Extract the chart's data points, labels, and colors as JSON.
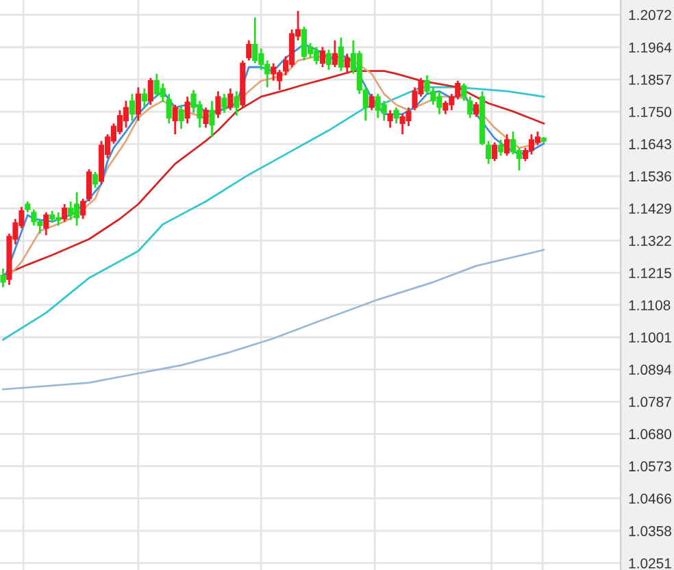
{
  "chart_data": {
    "type": "candlestick",
    "categories": [
      null,
      null,
      null,
      null,
      null,
      null,
      null,
      null,
      null,
      null,
      null,
      null,
      null,
      null,
      null,
      null,
      null,
      null,
      null,
      null,
      null,
      null,
      null,
      null,
      null,
      null,
      null,
      null,
      null,
      null,
      null,
      null,
      null,
      null,
      null,
      null,
      null,
      null,
      null,
      null,
      null,
      null,
      null,
      null,
      null,
      null,
      null,
      null,
      null,
      null,
      null,
      null,
      null,
      null,
      null,
      null,
      null,
      null,
      null,
      null,
      null,
      null,
      null,
      null,
      null,
      null,
      null,
      null,
      null,
      null,
      null,
      null,
      null,
      null,
      null,
      null,
      null,
      null,
      null,
      null,
      null,
      null,
      null,
      null,
      null,
      null,
      null,
      null,
      null,
      null,
      null,
      null,
      null,
      null,
      null,
      null,
      null,
      null,
      null,
      null,
      null
    ],
    "ohlc": [
      [
        1.1207,
        1.1229,
        1.1167,
        1.1184
      ],
      [
        1.1193,
        1.1345,
        1.1175,
        1.1336
      ],
      [
        1.1327,
        1.1394,
        1.1309,
        1.1381
      ],
      [
        1.1372,
        1.1434,
        1.1363,
        1.1421
      ],
      [
        1.1443,
        1.1452,
        1.1416,
        1.1425
      ],
      [
        1.1416,
        1.1425,
        1.1372,
        1.1385
      ],
      [
        1.1385,
        1.1394,
        1.1345,
        1.1372
      ],
      [
        1.1363,
        1.1416,
        1.134,
        1.1407
      ],
      [
        1.1407,
        1.1421,
        1.1381,
        1.1394
      ],
      [
        1.1398,
        1.1416,
        1.1372,
        1.139
      ],
      [
        1.1394,
        1.1443,
        1.1385,
        1.143
      ],
      [
        1.143,
        1.1452,
        1.139,
        1.1407
      ],
      [
        1.1443,
        1.1483,
        1.1372,
        1.1398
      ],
      [
        1.1407,
        1.1461,
        1.1394,
        1.1452
      ],
      [
        1.1461,
        1.1559,
        1.1452,
        1.155
      ],
      [
        1.1541,
        1.155,
        1.1497,
        1.151
      ],
      [
        1.1519,
        1.1653,
        1.151,
        1.1639
      ],
      [
        1.1608,
        1.1675,
        1.1595,
        1.1666
      ],
      [
        1.1653,
        1.1711,
        1.1644,
        1.1702
      ],
      [
        1.1684,
        1.1755,
        1.1675,
        1.1737
      ],
      [
        1.172,
        1.1786,
        1.1697,
        1.1764
      ],
      [
        1.1786,
        1.1809,
        1.172,
        1.1742
      ],
      [
        1.1742,
        1.1831,
        1.172,
        1.1809
      ],
      [
        1.1809,
        1.1827,
        1.1764,
        1.1786
      ],
      [
        1.1786,
        1.1862,
        1.1773,
        1.1853
      ],
      [
        1.1853,
        1.1876,
        1.18,
        1.1809
      ],
      [
        1.1827,
        1.1844,
        1.1782,
        1.18
      ],
      [
        1.1791,
        1.1809,
        1.1711,
        1.1729
      ],
      [
        1.172,
        1.1773,
        1.1675,
        1.1764
      ],
      [
        1.1755,
        1.1773,
        1.1693,
        1.172
      ],
      [
        1.1729,
        1.18,
        1.1711,
        1.1782
      ],
      [
        1.1809,
        1.1822,
        1.1746,
        1.1764
      ],
      [
        1.1773,
        1.1786,
        1.1697,
        1.1729
      ],
      [
        1.1711,
        1.1764,
        1.1697,
        1.1755
      ],
      [
        1.1755,
        1.1786,
        1.1666,
        1.1706
      ],
      [
        1.1742,
        1.1818,
        1.1729,
        1.18
      ],
      [
        1.1795,
        1.1809,
        1.1746,
        1.1764
      ],
      [
        1.1764,
        1.1827,
        1.1755,
        1.1809
      ],
      [
        1.18,
        1.1818,
        1.1737,
        1.1764
      ],
      [
        1.1773,
        1.192,
        1.1764,
        1.1911
      ],
      [
        1.1929,
        1.1987,
        1.192,
        1.1974
      ],
      [
        1.1974,
        1.2063,
        1.1911,
        1.192
      ],
      [
        1.1943,
        1.196,
        1.1889,
        1.1907
      ],
      [
        1.1907,
        1.192,
        1.1831,
        1.1876
      ],
      [
        1.1876,
        1.1911,
        1.1853,
        1.1898
      ],
      [
        1.1853,
        1.1889,
        1.1822,
        1.188
      ],
      [
        1.1885,
        1.1934,
        1.1871,
        1.192
      ],
      [
        1.1907,
        1.2023,
        1.1898,
        1.2009
      ],
      [
        1.2001,
        1.2085,
        1.1987,
        1.2023
      ],
      [
        1.2023,
        1.2032,
        1.192,
        1.1934
      ],
      [
        1.1965,
        1.1978,
        1.1929,
        1.1943
      ],
      [
        1.1952,
        1.1965,
        1.1907,
        1.192
      ],
      [
        1.1911,
        1.1965,
        1.1898,
        1.1952
      ],
      [
        1.1943,
        1.1956,
        1.1889,
        1.1907
      ],
      [
        1.1907,
        1.1987,
        1.1898,
        1.1943
      ],
      [
        1.1965,
        1.1996,
        1.1885,
        1.1898
      ],
      [
        1.1898,
        1.1943,
        1.1876,
        1.1929
      ],
      [
        1.1943,
        1.1987,
        1.1876,
        1.1889
      ],
      [
        1.1943,
        1.1952,
        1.1809,
        1.1822
      ],
      [
        1.1822,
        1.1831,
        1.172,
        1.1764
      ],
      [
        1.1764,
        1.1809,
        1.1755,
        1.18
      ],
      [
        1.18,
        1.1809,
        1.1729,
        1.1755
      ],
      [
        1.1773,
        1.1786,
        1.172,
        1.1746
      ],
      [
        1.172,
        1.1755,
        1.1697,
        1.1742
      ],
      [
        1.1755,
        1.1764,
        1.1711,
        1.1729
      ],
      [
        1.1711,
        1.1742,
        1.1675,
        1.1733
      ],
      [
        1.172,
        1.1764,
        1.1702,
        1.1751
      ],
      [
        1.1764,
        1.1831,
        1.1755,
        1.1818
      ],
      [
        1.1809,
        1.1862,
        1.18,
        1.1853
      ],
      [
        1.1853,
        1.1871,
        1.1809,
        1.1818
      ],
      [
        1.1818,
        1.1831,
        1.1773,
        1.1786
      ],
      [
        1.18,
        1.1818,
        1.1742,
        1.1764
      ],
      [
        1.1755,
        1.1786,
        1.1742,
        1.1778
      ],
      [
        1.1773,
        1.1809,
        1.1755,
        1.18
      ],
      [
        1.18,
        1.1853,
        1.1791,
        1.1844
      ],
      [
        1.1836,
        1.1844,
        1.1786,
        1.18
      ],
      [
        1.1786,
        1.18,
        1.1729,
        1.1742
      ],
      [
        1.1742,
        1.1782,
        1.1733,
        1.1773
      ],
      [
        1.18,
        1.1818,
        1.1639,
        1.1644
      ],
      [
        1.1639,
        1.1653,
        1.1577,
        1.1595
      ],
      [
        1.1595,
        1.1648,
        1.1586,
        1.1639
      ],
      [
        1.1639,
        1.1657,
        1.1604,
        1.1617
      ],
      [
        1.1613,
        1.1675,
        1.1604,
        1.1657
      ],
      [
        1.1657,
        1.1684,
        1.1608,
        1.1617
      ],
      [
        1.1621,
        1.163,
        1.1555,
        1.1595
      ],
      [
        1.1595,
        1.163,
        1.1586,
        1.1621
      ],
      [
        1.1621,
        1.1675,
        1.1608,
        1.1657
      ],
      [
        1.1648,
        1.1684,
        1.1639,
        1.1666
      ],
      [
        1.1662,
        1.1666,
        1.1648,
        1.1653
      ],
      null,
      null,
      null,
      null,
      null,
      null,
      null,
      null,
      null,
      null,
      null,
      null
    ],
    "colors": [
      "#22dd22",
      "#ee1c25",
      "#ee1c25",
      "#ee1c25",
      "#22dd22",
      "#22dd22",
      "#22dd22",
      "#ee1c25",
      "#22dd22",
      "#22dd22",
      "#ee1c25",
      "#22dd22",
      "#22dd22",
      "#ee1c25",
      "#ee1c25",
      "#22dd22",
      "#ee1c25",
      "#ee1c25",
      "#ee1c25",
      "#ee1c25",
      "#ee1c25",
      "#22dd22",
      "#ee1c25",
      "#22dd22",
      "#ee1c25",
      "#22dd22",
      "#22dd22",
      "#22dd22",
      "#ee1c25",
      "#22dd22",
      "#ee1c25",
      "#22dd22",
      "#22dd22",
      "#ee1c25",
      "#22dd22",
      "#ee1c25",
      "#22dd22",
      "#ee1c25",
      "#22dd22",
      "#ee1c25",
      "#ee1c25",
      "#22dd22",
      "#22dd22",
      "#22dd22",
      "#ee1c25",
      "#ee1c25",
      "#ee1c25",
      "#ee1c25",
      "#ee1c25",
      "#22dd22",
      "#22dd22",
      "#22dd22",
      "#ee1c25",
      "#22dd22",
      "#ee1c25",
      "#22dd22",
      "#ee1c25",
      "#22dd22",
      "#22dd22",
      "#22dd22",
      "#ee1c25",
      "#22dd22",
      "#22dd22",
      "#ee1c25",
      "#22dd22",
      "#ee1c25",
      "#ee1c25",
      "#ee1c25",
      "#ee1c25",
      "#22dd22",
      "#22dd22",
      "#22dd22",
      "#ee1c25",
      "#ee1c25",
      "#ee1c25",
      "#22dd22",
      "#22dd22",
      "#ee1c25",
      "#22dd22",
      "#22dd22",
      "#ee1c25",
      "#22dd22",
      "#ee1c25",
      "#22dd22",
      "#22dd22",
      "#ee1c25",
      "#ee1c25",
      "#ee1c25",
      "#22dd22",
      null,
      null,
      null,
      null,
      null,
      null,
      null,
      null,
      null,
      null,
      null,
      null
    ],
    "series": [
      {
        "type": "line",
        "color": "#9ab8d4",
        "values": [
          1.0828,
          null,
          null,
          null,
          null,
          null,
          null,
          null,
          null,
          null,
          null,
          null,
          null,
          null,
          1.085,
          null,
          null,
          null,
          null,
          null,
          null,
          null,
          1.0881,
          null,
          null,
          null,
          null,
          null,
          null,
          1.0908,
          null,
          null,
          null,
          null,
          null,
          null,
          null,
          1.0952,
          null,
          null,
          null,
          null,
          null,
          null,
          1.0997,
          null,
          null,
          null,
          null,
          null,
          null,
          1.1051,
          null,
          null,
          null,
          null,
          null,
          null,
          null,
          null,
          null,
          1.1126,
          null,
          null,
          null,
          null,
          null,
          null,
          null,
          null,
          1.1184,
          null,
          null,
          null,
          null,
          null,
          null,
          1.1238,
          null,
          null,
          null,
          null,
          null,
          null,
          null,
          null,
          null,
          null,
          1.1291,
          null,
          null,
          null,
          null,
          null,
          null,
          null,
          null,
          null,
          null,
          null,
          null
        ]
      },
      {
        "type": "line",
        "color": "#33c6cc",
        "values": [
          1.0993,
          null,
          null,
          null,
          null,
          null,
          null,
          1.1082,
          null,
          null,
          null,
          null,
          null,
          null,
          1.1198,
          null,
          null,
          null,
          null,
          null,
          null,
          null,
          1.1287,
          null,
          null,
          null,
          1.1376,
          null,
          null,
          null,
          null,
          null,
          null,
          1.1452,
          null,
          null,
          null,
          null,
          null,
          null,
          1.1541,
          null,
          null,
          null,
          1.1586,
          null,
          null,
          null,
          null,
          null,
          null,
          null,
          null,
          1.1688,
          null,
          null,
          null,
          null,
          null,
          1.1764,
          null,
          null,
          1.1778,
          null,
          null,
          null,
          null,
          null,
          1.1831,
          null,
          null,
          null,
          null,
          null,
          1.1831,
          null,
          null,
          null,
          null,
          null,
          null,
          null,
          1.1818,
          null,
          null,
          null,
          null,
          null,
          1.18,
          null,
          null,
          null,
          null,
          null,
          null,
          null,
          null,
          null,
          null,
          null,
          null
        ]
      },
      {
        "type": "line",
        "color": "#d42424",
        "values": [
          1.1207,
          null,
          null,
          null,
          1.1242,
          null,
          null,
          null,
          1.1274,
          null,
          null,
          null,
          null,
          null,
          1.1327,
          null,
          null,
          null,
          null,
          1.1394,
          null,
          null,
          1.1443,
          null,
          null,
          null,
          null,
          null,
          1.1577,
          null,
          null,
          null,
          null,
          1.1653,
          null,
          1.1688,
          null,
          null,
          1.1751,
          null,
          null,
          null,
          1.18,
          null,
          null,
          null,
          1.1822,
          null,
          null,
          1.184,
          null,
          null,
          null,
          1.1862,
          null,
          null,
          null,
          1.1885,
          null,
          null,
          null,
          null,
          1.1885,
          null,
          1.1876,
          null,
          null,
          null,
          1.1853,
          null,
          null,
          null,
          null,
          null,
          1.1831,
          null,
          null,
          null,
          null,
          1.1778,
          null,
          null,
          null,
          1.1751,
          null,
          null,
          null,
          null,
          1.1711,
          null,
          null,
          null,
          null,
          null,
          null,
          null,
          null,
          null,
          null,
          null,
          null
        ]
      },
      {
        "type": "line",
        "color": "#e3a57a",
        "values": [
          1.1184,
          null,
          null,
          1.1251,
          null,
          null,
          1.1354,
          null,
          null,
          null,
          1.1385,
          null,
          1.1407,
          null,
          null,
          1.1461,
          null,
          1.1563,
          null,
          null,
          1.1653,
          null,
          1.1729,
          null,
          1.1764,
          null,
          1.1786,
          null,
          1.1764,
          null,
          null,
          1.1742,
          null,
          1.1729,
          null,
          1.1755,
          null,
          1.1764,
          null,
          null,
          1.1818,
          null,
          1.1853,
          null,
          1.1862,
          null,
          1.1876,
          null,
          1.192,
          null,
          null,
          1.1934,
          null,
          1.1929,
          null,
          1.192,
          null,
          1.192,
          null,
          null,
          1.1876,
          null,
          1.1809,
          null,
          1.1773,
          null,
          1.1755,
          null,
          1.1773,
          null,
          null,
          1.18,
          null,
          1.18,
          null,
          1.1795,
          null,
          1.1764,
          null,
          null,
          1.1697,
          null,
          1.1662,
          null,
          1.163,
          null,
          1.1639,
          null,
          1.1653,
          null,
          null,
          null,
          null,
          null,
          null,
          null,
          null,
          null,
          null,
          null,
          null
        ]
      },
      {
        "type": "line",
        "color": "#3f8fe0",
        "values": [
          1.1184,
          null,
          null,
          null,
          1.1407,
          1.1394,
          null,
          null,
          1.1385,
          null,
          null,
          1.1407,
          1.1421,
          null,
          1.1461,
          null,
          1.151,
          1.1586,
          1.163,
          null,
          1.1684,
          null,
          1.1742,
          null,
          1.1786,
          null,
          1.1818,
          null,
          1.1764,
          null,
          null,
          1.1778,
          null,
          1.1751,
          null,
          1.1751,
          null,
          null,
          1.1778,
          null,
          1.1898,
          null,
          1.1898,
          null,
          1.1885,
          null,
          1.1929,
          null,
          null,
          1.1974,
          null,
          1.1956,
          null,
          1.1929,
          null,
          null,
          1.1934,
          1.1911,
          null,
          null,
          1.1795,
          null,
          1.1742,
          null,
          null,
          1.1742,
          null,
          1.1764,
          null,
          1.1809,
          null,
          1.1818,
          null,
          1.1795,
          null,
          1.1809,
          null,
          1.1742,
          null,
          null,
          1.1662,
          null,
          1.163,
          null,
          1.1608,
          null,
          1.1621,
          null,
          1.1644,
          null,
          null,
          null,
          null,
          null,
          null,
          null,
          null,
          null,
          null,
          null,
          null
        ]
      }
    ],
    "ylim": [
      1.0228,
      1.2121
    ],
    "yticks": [
      {
        "value": 1.0251,
        "label": "1.0251"
      },
      {
        "value": 1.0358,
        "label": "1.0358"
      },
      {
        "value": 1.0466,
        "label": "1.0466"
      },
      {
        "value": 1.0573,
        "label": "1.0573"
      },
      {
        "value": 1.068,
        "label": "1.0680"
      },
      {
        "value": 1.0787,
        "label": "1.0787"
      },
      {
        "value": 1.0894,
        "label": "1.0894"
      },
      {
        "value": 1.1001,
        "label": "1.1001"
      },
      {
        "value": 1.1108,
        "label": "1.1108"
      },
      {
        "value": 1.1215,
        "label": "1.1215"
      },
      {
        "value": 1.1322,
        "label": "1.1322"
      },
      {
        "value": 1.1429,
        "label": "1.1429"
      },
      {
        "value": 1.1536,
        "label": "1.1536"
      },
      {
        "value": 1.1643,
        "label": "1.1643"
      },
      {
        "value": 1.175,
        "label": "1.1750"
      },
      {
        "value": 1.1857,
        "label": "1.1857"
      },
      {
        "value": 1.1964,
        "label": "1.1964"
      },
      {
        "value": 1.2072,
        "label": "1.2072"
      }
    ],
    "grid": true,
    "tick_labels": "y"
  }
}
